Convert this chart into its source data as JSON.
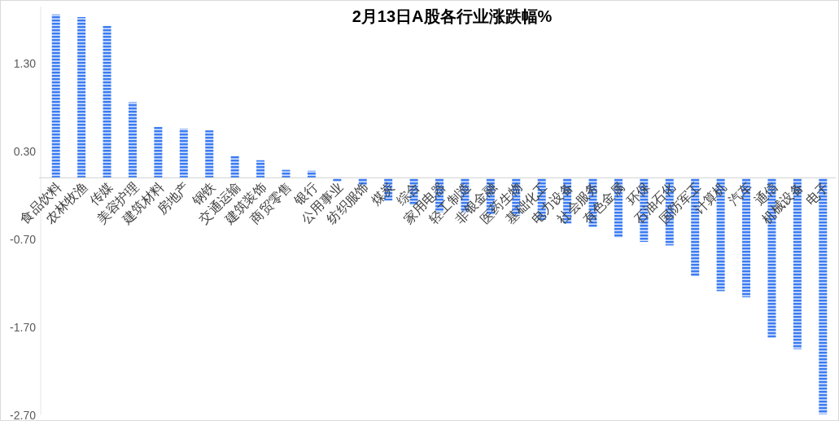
{
  "chart_data": {
    "type": "bar",
    "title": "2月13日A股各行业涨跌幅%",
    "categories": [
      "食品饮料",
      "农林牧渔",
      "传媒",
      "美容护理",
      "建筑材料",
      "房地产",
      "钢铁",
      "交通运输",
      "建筑装饰",
      "商贸零售",
      "银行",
      "公用事业",
      "纺织服饰",
      "煤炭",
      "综合",
      "家用电器",
      "轻工制造",
      "非银金融",
      "医药生物",
      "基础化工",
      "电力设备",
      "社会服务",
      "有色金属",
      "环保",
      "石油石化",
      "国防军工",
      "计算机",
      "汽车",
      "通信",
      "机械设备",
      "电子"
    ],
    "values": [
      1.86,
      1.83,
      1.73,
      0.86,
      0.58,
      0.56,
      0.54,
      0.25,
      0.2,
      0.09,
      0.08,
      -0.04,
      -0.09,
      -0.26,
      -0.31,
      -0.39,
      -0.39,
      -0.42,
      -0.43,
      -0.48,
      -0.52,
      -0.56,
      -0.68,
      -0.73,
      -0.77,
      -1.12,
      -1.29,
      -1.36,
      -1.82,
      -1.95,
      -2.69
    ],
    "color": "#3b7bf2",
    "ylim": [
      -2.7,
      1.95
    ],
    "yticks": [
      {
        "value": 1.3,
        "label": "1.30"
      },
      {
        "value": 0.3,
        "label": "0.30"
      },
      {
        "value": -0.7,
        "label": "-0.70"
      },
      {
        "value": -1.7,
        "label": "-1.70"
      },
      {
        "value": -2.7,
        "label": "-2.70"
      }
    ],
    "grid": false
  }
}
